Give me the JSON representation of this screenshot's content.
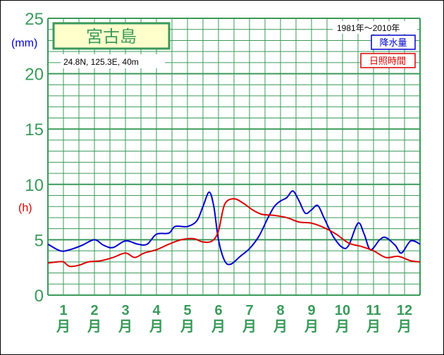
{
  "chart_data": {
    "type": "line",
    "title": "宮古島",
    "location": "24.8N,  125.3E,  40m",
    "period": "1981年〜2010年",
    "ylabel_precip": "(mm)",
    "ylabel_sun": "(h)",
    "yticks": [
      "0",
      "5",
      "10",
      "15",
      "20",
      "25"
    ],
    "ylim": [
      0,
      25
    ],
    "xlim": [
      0.5,
      12.5
    ],
    "xticks_num": [
      "1",
      "2",
      "3",
      "4",
      "5",
      "6",
      "7",
      "8",
      "9",
      "10",
      "11",
      "12"
    ],
    "xticks_unit": "月",
    "grid": true,
    "legend_position": "top-right",
    "colors": {
      "grid": "#3a9a5a",
      "precip": "#0000cc",
      "sun": "#dd0000",
      "title_box_bg": "#ffffcc",
      "title_text": "#3a9a5a"
    },
    "series": [
      {
        "name": "降水量",
        "color": "#0000cc",
        "x": [
          0.5,
          0.9,
          1.2,
          1.6,
          2.0,
          2.3,
          2.6,
          3.0,
          3.4,
          3.7,
          4.0,
          4.4,
          4.6,
          5.0,
          5.3,
          5.5,
          5.7,
          5.85,
          6.0,
          6.2,
          6.4,
          6.7,
          7.0,
          7.3,
          7.6,
          7.8,
          8.0,
          8.2,
          8.4,
          8.6,
          8.8,
          9.0,
          9.2,
          9.4,
          9.7,
          10.0,
          10.2,
          10.5,
          10.7,
          10.9,
          11.2,
          11.4,
          11.7,
          11.9,
          12.2,
          12.5
        ],
        "values": [
          4.6,
          4.0,
          4.1,
          4.5,
          5.0,
          4.5,
          4.3,
          4.9,
          4.6,
          4.6,
          5.5,
          5.6,
          6.2,
          6.2,
          6.7,
          8.0,
          9.3,
          8.0,
          5.0,
          3.1,
          2.8,
          3.5,
          4.2,
          5.3,
          7.0,
          8.0,
          8.5,
          8.8,
          9.4,
          8.5,
          7.4,
          7.7,
          8.1,
          7.0,
          5.3,
          4.3,
          4.5,
          6.5,
          5.5,
          4.1,
          5.0,
          5.2,
          4.5,
          3.8,
          4.9,
          4.6
        ]
      },
      {
        "name": "日照時間",
        "color": "#dd0000",
        "x": [
          0.5,
          0.8,
          1.0,
          1.2,
          1.5,
          1.8,
          2.2,
          2.6,
          3.0,
          3.3,
          3.6,
          4.0,
          4.4,
          4.8,
          5.2,
          5.5,
          5.8,
          6.0,
          6.2,
          6.5,
          6.8,
          7.1,
          7.4,
          7.8,
          8.2,
          8.6,
          9.0,
          9.4,
          9.8,
          10.2,
          10.6,
          11.0,
          11.4,
          11.8,
          12.2,
          12.5
        ],
        "values": [
          2.9,
          3.0,
          3.0,
          2.6,
          2.7,
          3.0,
          3.1,
          3.4,
          3.8,
          3.4,
          3.8,
          4.1,
          4.6,
          5.0,
          5.1,
          4.8,
          4.9,
          5.8,
          8.2,
          8.7,
          8.3,
          7.7,
          7.3,
          7.2,
          7.0,
          6.6,
          6.5,
          6.1,
          5.5,
          4.7,
          4.4,
          4.0,
          3.4,
          3.5,
          3.1,
          3.0
        ]
      }
    ]
  }
}
